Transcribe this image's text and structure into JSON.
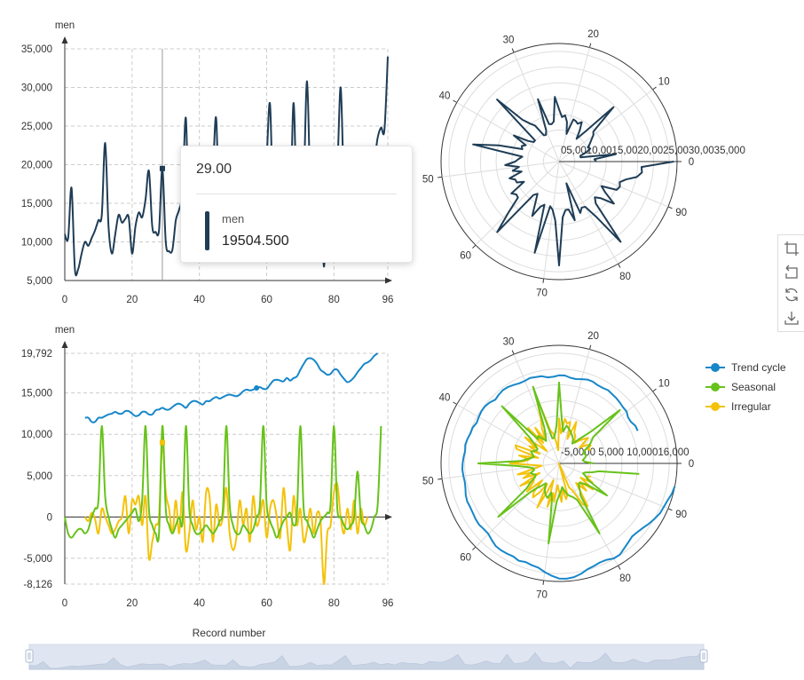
{
  "chart_data": [
    {
      "type": "line",
      "ylabel": "men",
      "x_ticks": [
        0,
        20,
        40,
        60,
        80,
        96
      ],
      "y_ticks": [
        "5,000",
        "10,000",
        "15,000",
        "20,000",
        "25,000",
        "30,000",
        "35,000"
      ],
      "ylim": [
        5000,
        35000
      ],
      "xlim": [
        0,
        96
      ],
      "series": [
        {
          "values": [
            11000,
            10500,
            17000,
            6500,
            6500,
            8500,
            10000,
            9500,
            10500,
            11500,
            12800,
            13500,
            22800,
            12000,
            8500,
            11000,
            13500,
            12500,
            13000,
            13200,
            8500,
            12000,
            13800,
            13200,
            15500,
            19200,
            12000,
            11300,
            11500,
            19504.5,
            10000,
            8800,
            9000,
            12800,
            14200,
            16500,
            26000,
            9500,
            9500,
            11000,
            15500,
            11000,
            12000,
            11500,
            18500,
            26000,
            11000,
            12000,
            13000,
            16000,
            12000,
            14000,
            11500,
            15500,
            14000,
            14000,
            12000,
            17000,
            16000,
            16200,
            21000,
            27800,
            12500,
            11500,
            14000,
            18000,
            14500,
            13500,
            28000,
            13500,
            14500,
            17500,
            30800,
            16500,
            14500,
            14500,
            18000,
            6800,
            16500,
            15200,
            15500,
            19500,
            30000,
            16500,
            15000,
            16500,
            20500,
            16500,
            14500,
            19000,
            19500,
            19000,
            20500,
            23500,
            24800,
            24500,
            34000
          ]
        }
      ]
    },
    {
      "type": "polar-line",
      "angle_ticks": [
        "0",
        "10",
        "20",
        "30",
        "40",
        "50",
        "60",
        "70",
        "80",
        "90"
      ],
      "radius_ticks": [
        "0",
        "5,000",
        "10,000",
        "15,000",
        "20,000",
        "25,000",
        "30,000",
        "35,000"
      ],
      "radius_tick_label_text": "05,0010,0015,0020,0025,0030,0035,000",
      "angle_range": [
        0,
        96
      ],
      "radius_max": 35000
    },
    {
      "type": "line",
      "ylabel": "men",
      "xlabel": "Record number",
      "x_ticks": [
        0,
        20,
        40,
        60,
        80,
        96
      ],
      "y_ticks": [
        "-8,126",
        "-5,000",
        "0",
        "5,000",
        "10,000",
        "15,000",
        "19,792"
      ],
      "ylim": [
        -8126,
        19792
      ],
      "xlim": [
        0,
        96
      ],
      "legend_position": "right",
      "series": [
        {
          "name": "Trend cycle",
          "color": "#1787c9",
          "values": [
            null,
            null,
            null,
            null,
            null,
            null,
            12000,
            12000,
            11500,
            11500,
            12000,
            12000,
            12200,
            12400,
            12500,
            12700,
            12500,
            12500,
            12800,
            12800,
            12500,
            12200,
            12300,
            12700,
            12700,
            12400,
            12400,
            12900,
            13000,
            13200,
            13000,
            13000,
            13300,
            13600,
            13700,
            13500,
            13200,
            13700,
            14000,
            14000,
            13800,
            13600,
            14000,
            14000,
            14300,
            14500,
            14300,
            14500,
            14700,
            14800,
            14700,
            14600,
            14800,
            15200,
            15400,
            15300,
            15400,
            15600,
            15700,
            15500,
            15500,
            16000,
            16500,
            16600,
            16500,
            16400,
            16800,
            16500,
            16800,
            17000,
            17800,
            18500,
            19100,
            19200,
            19000,
            18500,
            17800,
            17500,
            17200,
            17300,
            17800,
            17800,
            17200,
            16700,
            16300,
            16500,
            16900,
            17500,
            18000,
            18500,
            18700,
            19000,
            19500,
            19792,
            null,
            null,
            null
          ]
        },
        {
          "name": "Seasonal",
          "color": "#67c21a",
          "values": [
            0,
            -2000,
            -2500,
            -2000,
            -1500,
            -1500,
            -2000,
            -1500,
            0,
            1000,
            2000,
            11000,
            2500,
            0,
            -1500,
            -2500,
            -1500,
            -1000,
            -500,
            0,
            500,
            1000,
            -500,
            2000,
            11000,
            1000,
            -1000,
            -2000,
            -2000,
            11000,
            1000,
            -1000,
            -2000,
            -1000,
            0,
            -500,
            11000,
            1000,
            -1000,
            -2000,
            -2000,
            -1500,
            -1000,
            -1500,
            -2000,
            -1500,
            -500,
            1000,
            11000,
            1500,
            -1000,
            -2000,
            -2000,
            -1000,
            -1500,
            -2000,
            -1500,
            0,
            1500,
            11000,
            1500,
            -500,
            -1500,
            -2500,
            -1500,
            -500,
            0,
            500,
            -1000,
            500,
            11000,
            1000,
            -500,
            -1500,
            -2500,
            -1500,
            -500,
            0,
            500,
            1500,
            11000,
            1000,
            0,
            -1000,
            -1500,
            -1000,
            0,
            5500,
            0,
            -1000,
            -2000,
            -1500,
            0,
            1500,
            11000,
            null,
            null
          ]
        },
        {
          "name": "Irregular",
          "color": "#f4c20a",
          "values": [
            null,
            null,
            null,
            null,
            null,
            null,
            0,
            -500,
            500,
            -300,
            -2000,
            1000,
            0,
            -1000,
            -2000,
            -1500,
            -500,
            0,
            2500,
            -2000,
            2000,
            1500,
            2500,
            -1000,
            2500,
            -5000,
            -3000,
            -1000,
            0,
            9000,
            3000,
            1000,
            -2000,
            2000,
            -2000,
            3000,
            -4000,
            -2000,
            2000,
            -1500,
            0,
            -3000,
            3000,
            2500,
            -3000,
            1500,
            -1000,
            0,
            3500,
            -2000,
            -4000,
            -2500,
            2000,
            -1000,
            1000,
            -3000,
            2500,
            -1000,
            0,
            2000,
            -2500,
            1000,
            2000,
            0,
            -2500,
            3500,
            -1000,
            -4000,
            2500,
            -1000,
            1000,
            -3000,
            -1500,
            1000,
            -2000,
            500,
            -500,
            -8126,
            -2000,
            -1000,
            3000,
            4000,
            0,
            -2000,
            1000,
            -1500,
            2000,
            -2000,
            1000,
            -1000,
            0,
            null,
            null,
            null,
            null,
            null,
            null
          ]
        }
      ]
    },
    {
      "type": "polar-line",
      "angle_ticks": [
        "0",
        "10",
        "20",
        "30",
        "40",
        "50",
        "60",
        "70",
        "80",
        "90"
      ],
      "radius_ticks": [
        "-5,000",
        "0",
        "5,000",
        "10,000",
        "16,000"
      ],
      "radius_tick_label_text": "-5,0000 5,000 10,00016,000",
      "angle_range": [
        0,
        96
      ]
    }
  ],
  "tooltip": {
    "title": "29.00",
    "series_name": "men",
    "value": "19504.500"
  },
  "legend": [
    {
      "name": "Trend cycle",
      "color": "#1787c9"
    },
    {
      "name": "Seasonal",
      "color": "#67c21a"
    },
    {
      "name": "Irregular",
      "color": "#f4c20a"
    }
  ],
  "datazoom": {
    "title": "Record number",
    "start": 0,
    "end": 100
  },
  "toolbox": [
    "zoom-icon",
    "zoom-reset-icon",
    "restore-icon",
    "save-image-icon"
  ],
  "colors": {
    "primary": "#1f3d56",
    "axis": "#333333",
    "grid": "#cccccc"
  }
}
